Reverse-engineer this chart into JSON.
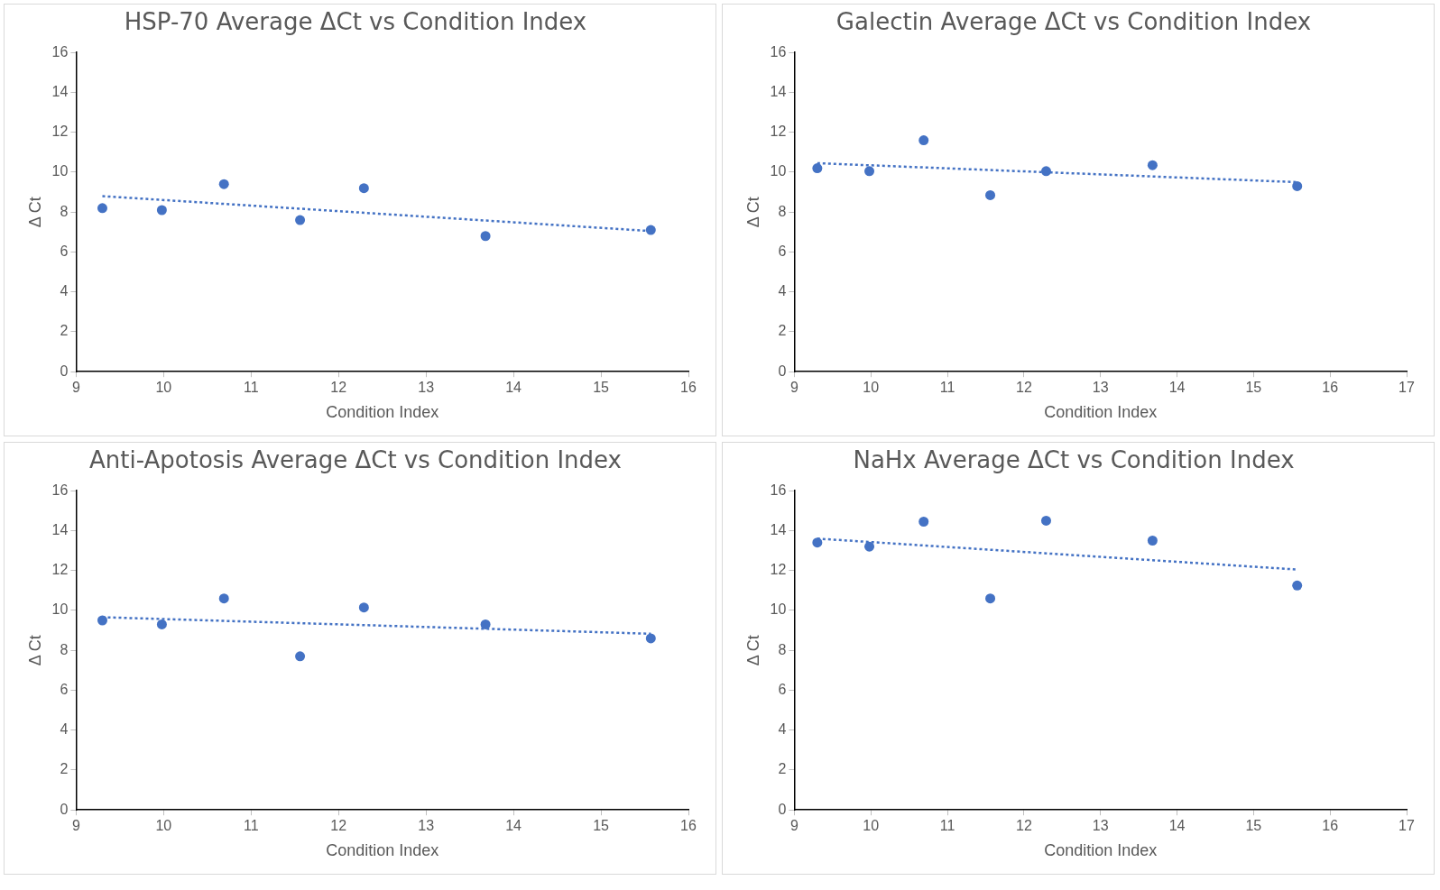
{
  "chart_data": [
    {
      "type": "scatter",
      "title": "HSP-70 Average ΔCt vs Condition Index",
      "xlabel": "Condition Index",
      "ylabel": "Δ Ct",
      "xlim": [
        9,
        16
      ],
      "xticks": [
        9,
        10,
        11,
        12,
        13,
        14,
        15,
        16
      ],
      "ylim": [
        0,
        16
      ],
      "yticks": [
        0,
        2,
        4,
        6,
        8,
        10,
        12,
        14,
        16
      ],
      "grid": false,
      "legend": false,
      "marker": "circle",
      "series": [
        {
          "type": "scatter",
          "color": "#4472c4",
          "x": [
            9.3,
            9.98,
            10.69,
            11.56,
            12.29,
            13.68,
            15.57
          ],
          "values": [
            8.2,
            8.1,
            9.4,
            7.6,
            9.2,
            6.8,
            7.1
          ]
        },
        {
          "type": "line",
          "color": "#4472c4",
          "line_style": "dotted",
          "marker": "none",
          "x": [
            9.3,
            15.57
          ],
          "values": [
            8.8,
            7.05
          ]
        }
      ]
    },
    {
      "type": "scatter",
      "title": "Galectin Average ΔCt vs Condition Index",
      "xlabel": "Condition Index",
      "ylabel": "Δ Ct",
      "xlim": [
        9,
        17
      ],
      "xticks": [
        9,
        10,
        11,
        12,
        13,
        14,
        15,
        16,
        17
      ],
      "ylim": [
        0,
        16
      ],
      "yticks": [
        0,
        2,
        4,
        6,
        8,
        10,
        12,
        14,
        16
      ],
      "grid": false,
      "legend": false,
      "marker": "circle",
      "series": [
        {
          "type": "scatter",
          "color": "#4472c4",
          "x": [
            9.3,
            9.98,
            10.69,
            11.56,
            12.29,
            13.68,
            15.57
          ],
          "values": [
            10.2,
            10.05,
            11.6,
            8.85,
            10.05,
            10.35,
            9.3
          ]
        },
        {
          "type": "line",
          "color": "#4472c4",
          "line_style": "dotted",
          "marker": "none",
          "x": [
            9.3,
            15.57
          ],
          "values": [
            10.45,
            9.5
          ]
        }
      ]
    },
    {
      "type": "scatter",
      "title": "Anti-Apotosis Average ΔCt vs Condition Index",
      "xlabel": "Condition Index",
      "ylabel": "Δ Ct",
      "xlim": [
        9,
        16
      ],
      "xticks": [
        9,
        10,
        11,
        12,
        13,
        14,
        15,
        16
      ],
      "ylim": [
        0,
        16
      ],
      "yticks": [
        0,
        2,
        4,
        6,
        8,
        10,
        12,
        14,
        16
      ],
      "grid": false,
      "legend": false,
      "marker": "circle",
      "series": [
        {
          "type": "scatter",
          "color": "#4472c4",
          "x": [
            9.3,
            9.98,
            10.69,
            11.56,
            12.29,
            13.68,
            15.57
          ],
          "values": [
            9.5,
            9.3,
            10.6,
            7.7,
            10.15,
            9.3,
            8.6
          ]
        },
        {
          "type": "line",
          "color": "#4472c4",
          "line_style": "dotted",
          "marker": "none",
          "x": [
            9.3,
            15.57
          ],
          "values": [
            9.66,
            8.83
          ]
        }
      ]
    },
    {
      "type": "scatter",
      "title": "NaHx Average ΔCt vs Condition Index",
      "xlabel": "Condition Index",
      "ylabel": "Δ Ct",
      "xlim": [
        9,
        17
      ],
      "xticks": [
        9,
        10,
        11,
        12,
        13,
        14,
        15,
        16,
        17
      ],
      "ylim": [
        0,
        16
      ],
      "yticks": [
        0,
        2,
        4,
        6,
        8,
        10,
        12,
        14,
        16
      ],
      "grid": false,
      "legend": false,
      "marker": "circle",
      "series": [
        {
          "type": "scatter",
          "color": "#4472c4",
          "x": [
            9.3,
            9.98,
            10.69,
            11.56,
            12.29,
            13.68,
            15.57
          ],
          "values": [
            13.4,
            13.2,
            14.45,
            10.6,
            14.5,
            13.5,
            11.25
          ]
        },
        {
          "type": "line",
          "color": "#4472c4",
          "line_style": "dotted",
          "marker": "none",
          "x": [
            9.3,
            15.57
          ],
          "values": [
            13.6,
            12.05
          ]
        }
      ]
    }
  ]
}
